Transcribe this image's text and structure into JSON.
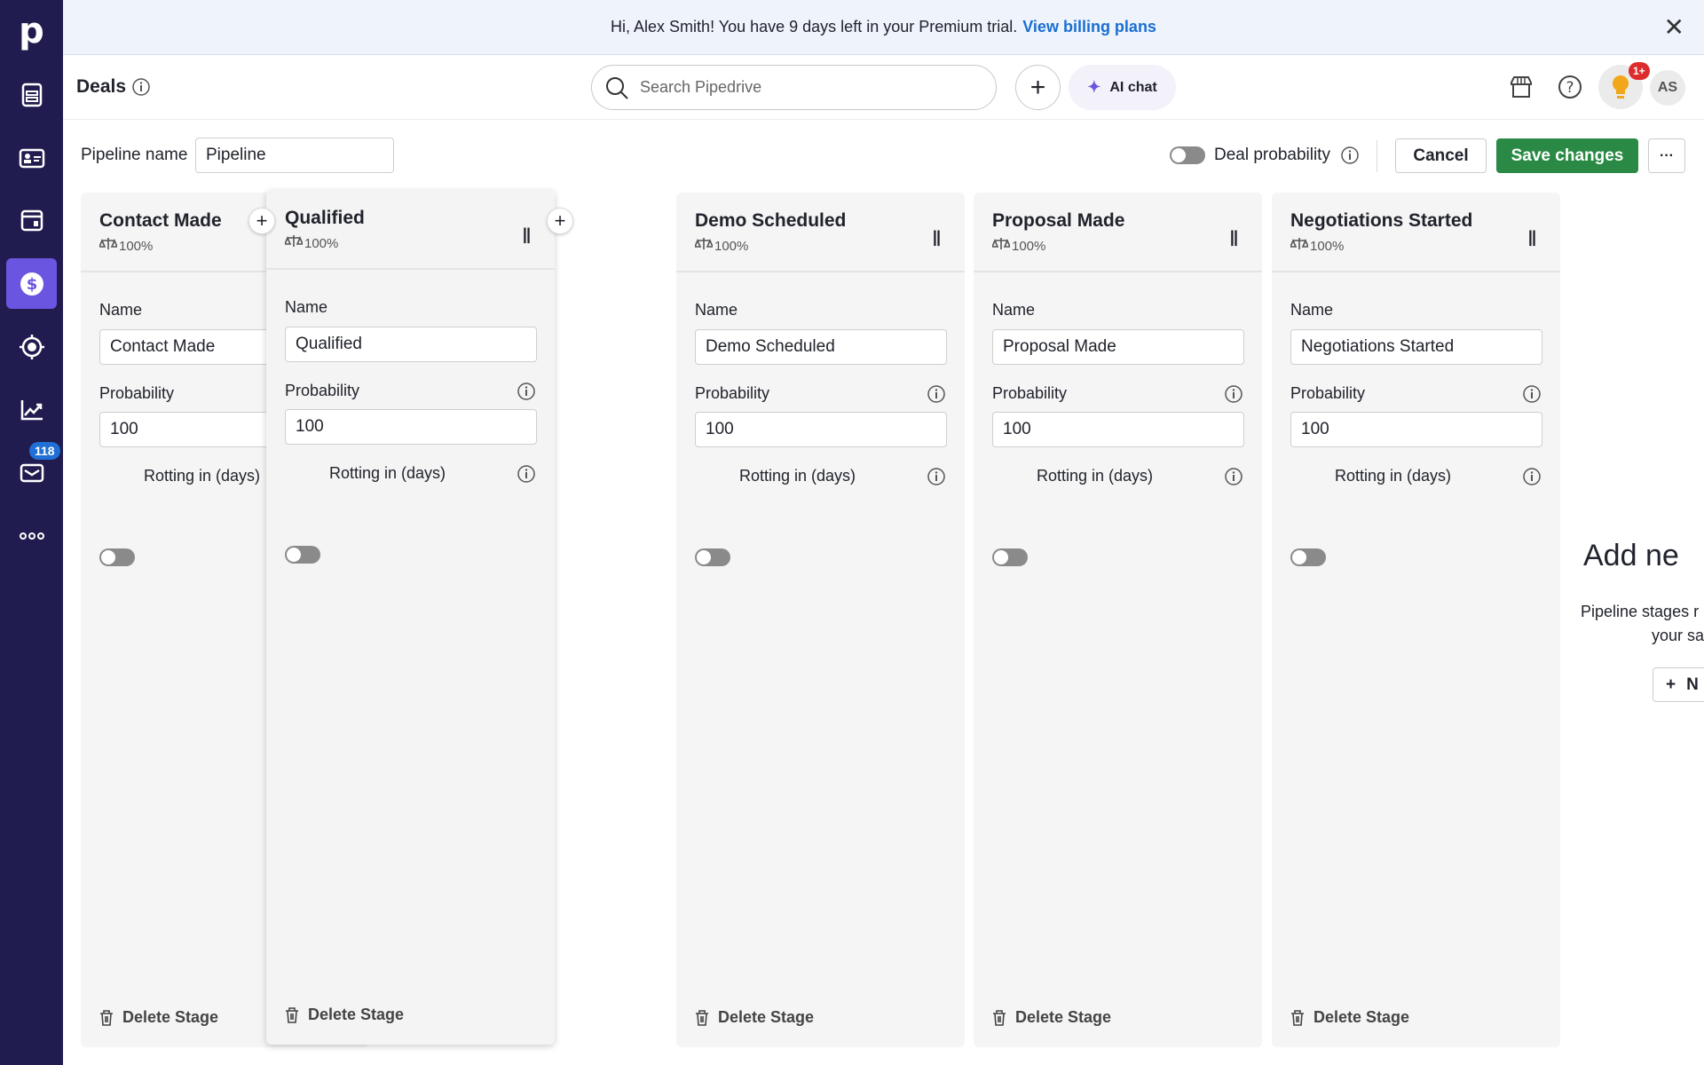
{
  "sidebar": {
    "items": [
      {
        "icon": "pipedrive-logo"
      },
      {
        "icon": "leads-icon"
      },
      {
        "icon": "contacts-icon"
      },
      {
        "icon": "activities-icon"
      },
      {
        "icon": "deals-icon",
        "active": true
      },
      {
        "icon": "projects-icon"
      },
      {
        "icon": "insights-icon"
      },
      {
        "icon": "mail-icon",
        "badge": "118"
      },
      {
        "icon": "more-icon"
      }
    ],
    "mail_badge": "118"
  },
  "banner": {
    "text": "Hi, Alex Smith! You have 9 days left in your Premium trial.",
    "link": "View billing plans"
  },
  "header": {
    "title": "Deals",
    "search_placeholder": "Search Pipedrive",
    "ai_chat": "AI chat",
    "notification_badge": "1+",
    "avatar": "AS"
  },
  "toolbar": {
    "pipeline_name_label": "Pipeline name",
    "pipeline_name_value": "Pipeline",
    "deal_probability": "Deal probability",
    "cancel": "Cancel",
    "save": "Save changes",
    "more": "···"
  },
  "stage_labels": {
    "name": "Name",
    "probability": "Probability",
    "rotting": "Rotting in (days)",
    "delete": "Delete Stage"
  },
  "stages": [
    {
      "title": "Contact Made",
      "probability": "100%",
      "name": "Contact Made",
      "prob_value": "100"
    },
    {
      "title": "Qualified",
      "probability": "100%",
      "name": "Qualified",
      "prob_value": "100"
    },
    {
      "title": "Demo Scheduled",
      "probability": "100%",
      "name": "Demo Scheduled",
      "prob_value": "100"
    },
    {
      "title": "Proposal Made",
      "probability": "100%",
      "name": "Proposal Made",
      "prob_value": "100"
    },
    {
      "title": "Negotiations Started",
      "probability": "100%",
      "name": "Negotiations Started",
      "prob_value": "100"
    }
  ],
  "add_stage": {
    "title": "Add ne",
    "desc_line1": "Pipeline stages r",
    "desc_line2": "your sa",
    "button": "N"
  },
  "colors": {
    "sidebar": "#211c4f",
    "active": "#6a55e0",
    "save": "#2a8a45",
    "link": "#1a6fd1"
  }
}
